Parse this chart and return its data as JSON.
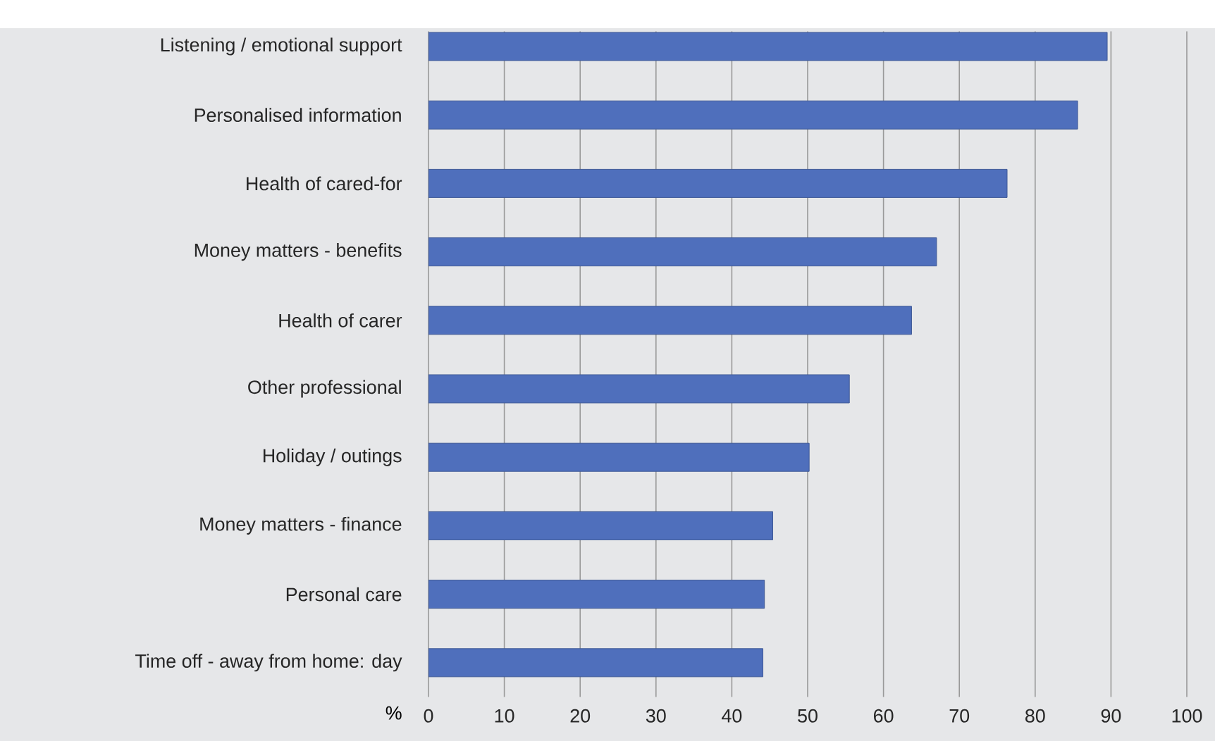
{
  "chart_data": {
    "type": "bar",
    "orientation": "horizontal",
    "xlabel": "%",
    "categories": [
      "Listening / emotional support",
      "Personalised information",
      "Health of cared-for",
      "Money matters - benefits",
      "Health of carer",
      "Other professional",
      "Holiday / outings",
      "Money matters - finance",
      "Personal care",
      "Time off - away from home: day"
    ],
    "values": [
      89.5,
      85.6,
      76.3,
      67.0,
      63.7,
      55.5,
      50.2,
      45.4,
      44.3,
      44.1
    ],
    "color": "#4f6fbc",
    "xlim": [
      0,
      100
    ],
    "xticks": [
      0,
      10,
      20,
      30,
      40,
      50,
      60,
      70,
      80,
      90,
      100
    ],
    "grid": "x"
  }
}
